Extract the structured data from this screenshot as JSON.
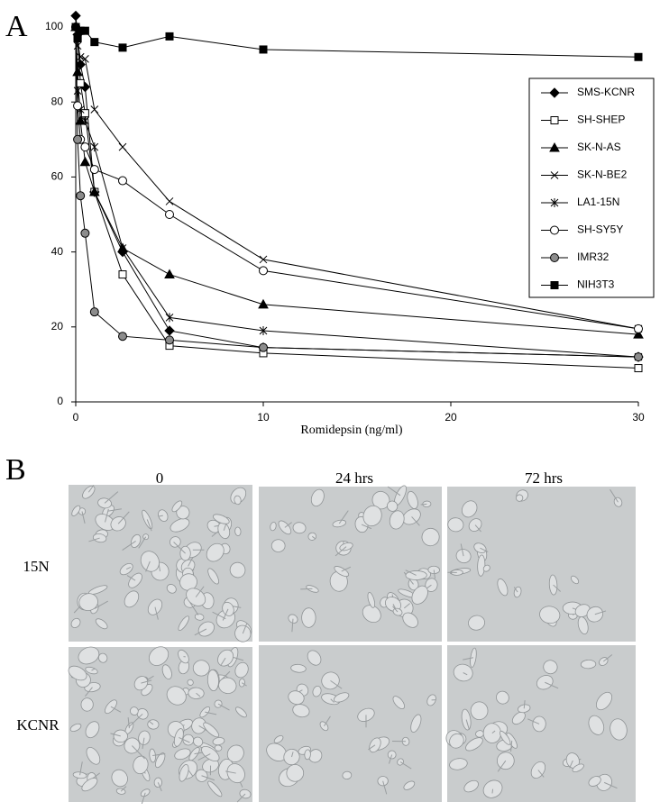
{
  "panel_labels": [
    "A",
    "B"
  ],
  "chart_data": {
    "type": "line",
    "xlabel": "Romidepsin (ng/ml)",
    "x": [
      0,
      0.1,
      0.25,
      0.5,
      1,
      2.5,
      5,
      10,
      30
    ],
    "xlim": [
      0,
      30
    ],
    "xticks": [
      0,
      10,
      20,
      30
    ],
    "ylim": [
      0,
      104
    ],
    "yticks": [
      0,
      20,
      40,
      60,
      80,
      100
    ],
    "legend": "right",
    "series": [
      {
        "name": "SMS-KCNR",
        "color": "#000000",
        "marker": "diamond",
        "marker_fill": "#000000",
        "values": [
          103,
          98,
          90,
          84,
          56,
          40,
          19,
          14.5,
          12
        ]
      },
      {
        "name": "SH-SHEP",
        "color": "#000000",
        "marker": "square",
        "marker_fill": "#ffffff",
        "values": [
          100,
          97,
          85,
          77,
          56,
          34,
          15,
          13,
          9
        ]
      },
      {
        "name": "SK-N-AS",
        "color": "#000000",
        "marker": "triangle",
        "marker_fill": "#000000",
        "values": [
          100,
          88,
          75,
          64,
          56,
          41,
          34,
          26,
          18
        ]
      },
      {
        "name": "SK-N-BE2",
        "color": "#000000",
        "marker": "x",
        "marker_fill": "#000000",
        "values": [
          100,
          95,
          92,
          91.5,
          78,
          68,
          53.5,
          38,
          19.5
        ]
      },
      {
        "name": "LA1-15N",
        "color": "#000000",
        "marker": "asterisk",
        "marker_fill": "#000000",
        "values": [
          100,
          83,
          78,
          75,
          68,
          41,
          22.5,
          19,
          12
        ]
      },
      {
        "name": "SH-SY5Y",
        "color": "#000000",
        "marker": "circle",
        "marker_fill": "#ffffff",
        "values": [
          100,
          79,
          70,
          68,
          62,
          59,
          50,
          35,
          19.5
        ]
      },
      {
        "name": "IMR32",
        "color": "#000000",
        "marker": "circle",
        "marker_fill": "#8c8c8c",
        "values": [
          100,
          70,
          55,
          45,
          24,
          17.5,
          16.5,
          14.5,
          12
        ]
      },
      {
        "name": "NIH3T3",
        "color": "#000000",
        "marker": "square",
        "marker_fill": "#000000",
        "values": [
          100,
          97,
          99,
          99,
          96,
          94.5,
          97.5,
          94,
          92
        ]
      }
    ]
  },
  "micrographs": {
    "columns": [
      "0",
      "24 hrs",
      "72 hrs"
    ],
    "rows": [
      "15N",
      "KCNR"
    ]
  }
}
